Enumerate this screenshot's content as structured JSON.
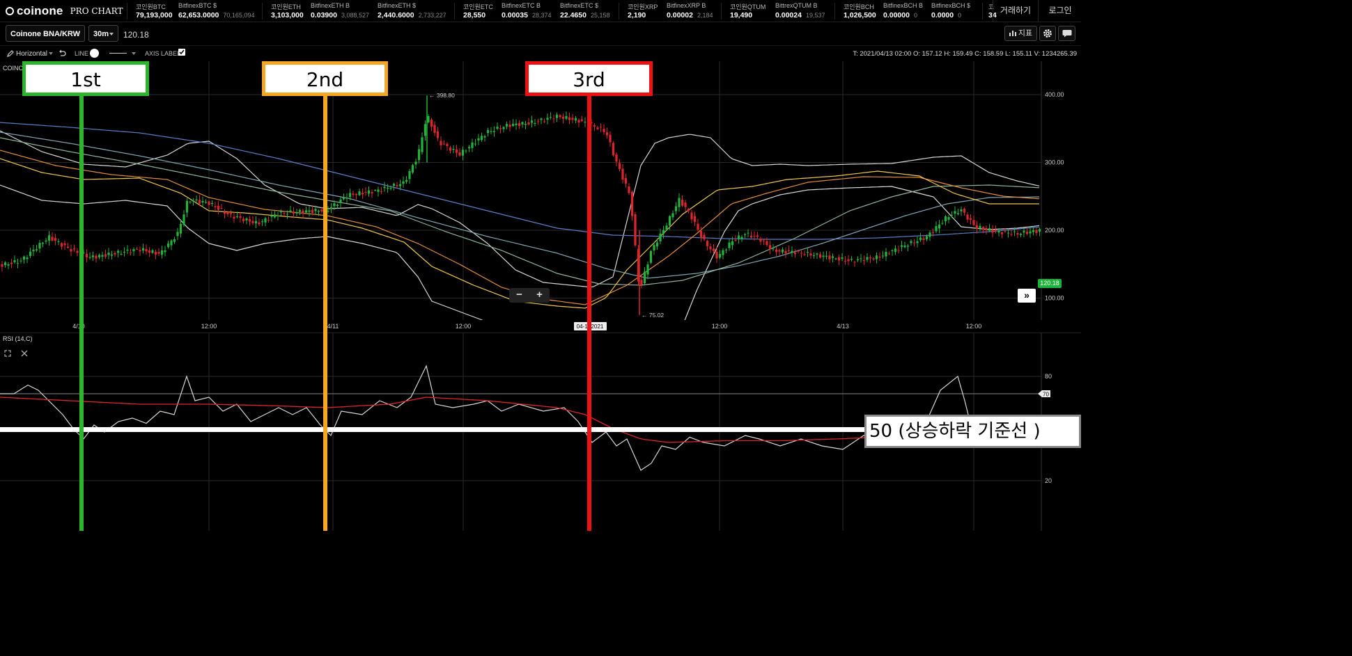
{
  "app": {
    "logo": "coinone",
    "logo_sub": "PRO CHART",
    "nav": {
      "trade": "거래하기",
      "login": "로그인"
    }
  },
  "ticker": [
    {
      "label": "코인원BTC",
      "value": "79,193,000",
      "sub": ""
    },
    {
      "label": "BitfinexBTC $",
      "value": "62,653.0000",
      "sub": "70,165,094"
    },
    {
      "label": "코인원ETH",
      "value": "3,103,000",
      "sub": ""
    },
    {
      "label": "BitfinexETH B",
      "value": "0.03900",
      "sub": "3,088,527"
    },
    {
      "label": "BitfinexETH $",
      "value": "2,440.6000",
      "sub": "2,733,227"
    },
    {
      "label": "코인원ETC",
      "value": "28,550",
      "sub": ""
    },
    {
      "label": "BitfinexETC B",
      "value": "0.00035",
      "sub": "28,374"
    },
    {
      "label": "BitfinexETC $",
      "value": "22.4650",
      "sub": "25,158"
    },
    {
      "label": "코인원XRP",
      "value": "2,190",
      "sub": ""
    },
    {
      "label": "BitfinexXRP B",
      "value": "0.00002",
      "sub": "2,184"
    },
    {
      "label": "코인원QTUM",
      "value": "19,490",
      "sub": ""
    },
    {
      "label": "BittrexQTUM B",
      "value": "0.00024",
      "sub": "19,537"
    },
    {
      "label": "코인원BCH",
      "value": "1,026,500",
      "sub": ""
    },
    {
      "label": "BitfinexBCH B",
      "value": "0.00000",
      "sub": "0"
    },
    {
      "label": "BitfinexBCH $",
      "value": "0.0000",
      "sub": "0"
    },
    {
      "label": "코",
      "value": "34",
      "sub": ""
    }
  ],
  "toolbar": {
    "market": "Coinone BNA/KRW",
    "interval": "30m",
    "last_price": "120.18",
    "indicator_btn": "지표"
  },
  "draw": {
    "tool": "Horizontal",
    "line_label": "LINE",
    "axis_label": "AXIS LABEL:",
    "ohlc": "T: 2021/04/13 02:00   O: 157.12   H: 159.49   C: 158.59   L: 155.11   V: 1234265.39"
  },
  "price_pane": {
    "symbol_label": "COINO",
    "y_ticks": [
      "400.00",
      "300.00",
      "200.00",
      "100.00"
    ],
    "x_ticks": [
      "4/10",
      "12:00",
      "4/11",
      "12:00",
      "04-1 -2021",
      "12:00",
      "4/13",
      "12:00"
    ],
    "high_label": "← 398.80",
    "low_label": "← 75.02",
    "current_tag": "120.18"
  },
  "rsi_pane": {
    "label": "RSI (14,C)",
    "y_ticks": [
      "80",
      "20"
    ],
    "level_tag": "70"
  },
  "annotations": {
    "first": "1st",
    "second": "2nd",
    "third": "3rd",
    "fifty": "50 (상승하락 기준선 )",
    "colors": {
      "first": "#2db52d",
      "second": "#f5a623",
      "third": "#ee1111"
    }
  },
  "colors": {
    "up": "#1fb53a",
    "down": "#e0242c",
    "ma_fast": "#f2c94c",
    "ma_mid": "#e58f3a",
    "ma_slow": "#8fb59a",
    "ma_long": "#5a7fc8",
    "bands": "#d9d9d9",
    "rsi": "#d9d9d9",
    "rsi_signal": "#e0242c"
  }
}
